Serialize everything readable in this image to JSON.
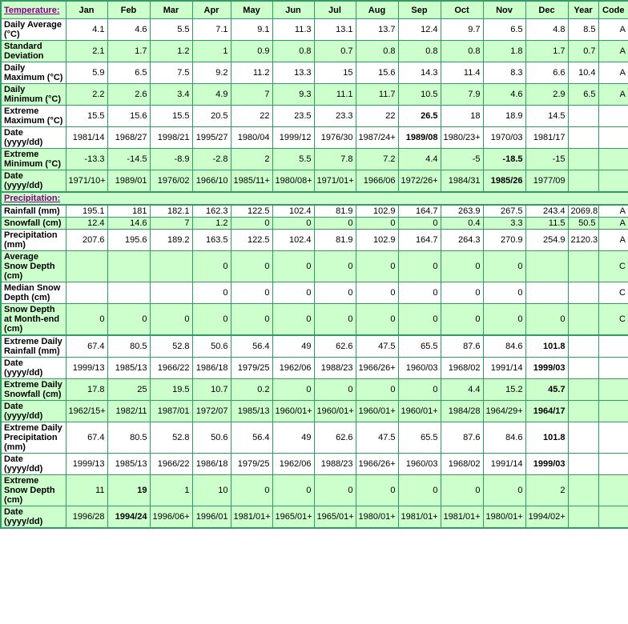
{
  "colors": {
    "border_green": "#339966",
    "row_light_green": "#ccffcc",
    "row_white": "#ffffff",
    "label_blue": "#0000cc",
    "section_link_purple": "#800080",
    "data_text": "#000000"
  },
  "columns": [
    "Jan",
    "Feb",
    "Mar",
    "Apr",
    "May",
    "Jun",
    "Jul",
    "Aug",
    "Sep",
    "Oct",
    "Nov",
    "Dec",
    "Year",
    "Code"
  ],
  "rows": [
    {
      "type": "columns-header",
      "label": "Temperature:",
      "shade": "green"
    },
    {
      "type": "data",
      "label": "Daily Average (°C)",
      "shade": "white",
      "cells": [
        "4.1",
        "4.6",
        "5.5",
        "7.1",
        "9.1",
        "11.3",
        "13.1",
        "13.7",
        "12.4",
        "9.7",
        "6.5",
        "4.8",
        "8.5",
        "A"
      ],
      "bold": []
    },
    {
      "type": "data",
      "label": "Standard Deviation",
      "shade": "green",
      "cells": [
        "2.1",
        "1.7",
        "1.2",
        "1",
        "0.9",
        "0.8",
        "0.7",
        "0.8",
        "0.8",
        "0.8",
        "1.8",
        "1.7",
        "0.7",
        "A"
      ],
      "bold": []
    },
    {
      "type": "data",
      "label": "Daily Maximum (°C)",
      "shade": "white",
      "cells": [
        "5.9",
        "6.5",
        "7.5",
        "9.2",
        "11.2",
        "13.3",
        "15",
        "15.6",
        "14.3",
        "11.4",
        "8.3",
        "6.6",
        "10.4",
        "A"
      ],
      "bold": []
    },
    {
      "type": "data",
      "label": "Daily Minimum (°C)",
      "shade": "green",
      "cells": [
        "2.2",
        "2.6",
        "3.4",
        "4.9",
        "7",
        "9.3",
        "11.1",
        "11.7",
        "10.5",
        "7.9",
        "4.6",
        "2.9",
        "6.5",
        "A"
      ],
      "bold": []
    },
    {
      "type": "data",
      "label": "Extreme Maximum (°C)",
      "shade": "white",
      "cells": [
        "15.5",
        "15.6",
        "15.5",
        "20.5",
        "22",
        "23.5",
        "23.3",
        "22",
        "26.5",
        "18",
        "18.9",
        "14.5",
        "",
        ""
      ],
      "bold": [
        8
      ]
    },
    {
      "type": "data",
      "label": "Date (yyyy/dd)",
      "shade": "white",
      "cells": [
        "1981/14",
        "1968/27",
        "1998/21",
        "1995/27",
        "1980/04",
        "1999/12",
        "1976/30",
        "1987/24+",
        "1989/08",
        "1980/23+",
        "1970/03",
        "1981/17",
        "",
        ""
      ],
      "bold": [
        8
      ]
    },
    {
      "type": "data",
      "label": "Extreme Minimum (°C)",
      "shade": "green",
      "cells": [
        "-13.3",
        "-14.5",
        "-8.9",
        "-2.8",
        "2",
        "5.5",
        "7.8",
        "7.2",
        "4.4",
        "-5",
        "-18.5",
        "-15",
        "",
        ""
      ],
      "bold": [
        10
      ]
    },
    {
      "type": "data",
      "label": "Date (yyyy/dd)",
      "shade": "green",
      "cells": [
        "1971/10+",
        "1989/01",
        "1976/02",
        "1966/10",
        "1985/11+",
        "1980/08+",
        "1971/01+",
        "1966/06",
        "1972/26+",
        "1984/31",
        "1985/26",
        "1977/09",
        "",
        ""
      ],
      "bold": [
        10
      ]
    },
    {
      "type": "section-header",
      "label": "Precipitation:",
      "shade": "green",
      "group_start": true
    },
    {
      "type": "data",
      "label": "Rainfall (mm)",
      "shade": "white",
      "group_start": true,
      "cells": [
        "195.1",
        "181",
        "182.1",
        "162.3",
        "122.5",
        "102.4",
        "81.9",
        "102.9",
        "164.7",
        "263.9",
        "267.5",
        "243.4",
        "2069.8",
        "A"
      ],
      "bold": []
    },
    {
      "type": "data",
      "label": "Snowfall (cm)",
      "shade": "green",
      "cells": [
        "12.4",
        "14.6",
        "7",
        "1.2",
        "0",
        "0",
        "0",
        "0",
        "0",
        "0.4",
        "3.3",
        "11.5",
        "50.5",
        "A"
      ],
      "bold": []
    },
    {
      "type": "data",
      "label": "Precipitation (mm)",
      "shade": "white",
      "cells": [
        "207.6",
        "195.6",
        "189.2",
        "163.5",
        "122.5",
        "102.4",
        "81.9",
        "102.9",
        "164.7",
        "264.3",
        "270.9",
        "254.9",
        "2120.3",
        "A"
      ],
      "bold": []
    },
    {
      "type": "data",
      "label": "Average Snow Depth (cm)",
      "shade": "green",
      "cells": [
        "",
        "",
        "",
        "0",
        "0",
        "0",
        "0",
        "0",
        "0",
        "0",
        "0",
        "",
        "",
        "C"
      ],
      "bold": []
    },
    {
      "type": "data",
      "label": "Median Snow Depth (cm)",
      "shade": "white",
      "cells": [
        "",
        "",
        "",
        "0",
        "0",
        "0",
        "0",
        "0",
        "0",
        "0",
        "0",
        "",
        "",
        "C"
      ],
      "bold": []
    },
    {
      "type": "data",
      "label": "Snow Depth at Month-end (cm)",
      "shade": "green",
      "cells": [
        "0",
        "0",
        "0",
        "0",
        "0",
        "0",
        "0",
        "0",
        "0",
        "0",
        "0",
        "0",
        "",
        "C"
      ],
      "bold": []
    },
    {
      "type": "data",
      "label": "Extreme Daily Rainfall (mm)",
      "shade": "white",
      "group_start": true,
      "cells": [
        "67.4",
        "80.5",
        "52.8",
        "50.6",
        "56.4",
        "49",
        "62.6",
        "47.5",
        "65.5",
        "87.6",
        "84.6",
        "101.8",
        "",
        ""
      ],
      "bold": [
        11
      ]
    },
    {
      "type": "data",
      "label": "Date (yyyy/dd)",
      "shade": "white",
      "cells": [
        "1999/13",
        "1985/13",
        "1966/22",
        "1986/18",
        "1979/25",
        "1962/06",
        "1988/23",
        "1966/26+",
        "1960/03",
        "1968/02",
        "1991/14",
        "1999/03",
        "",
        ""
      ],
      "bold": [
        11
      ]
    },
    {
      "type": "data",
      "label": "Extreme Daily Snowfall (cm)",
      "shade": "green",
      "cells": [
        "17.8",
        "25",
        "19.5",
        "10.7",
        "0.2",
        "0",
        "0",
        "0",
        "0",
        "4.4",
        "15.2",
        "45.7",
        "",
        ""
      ],
      "bold": [
        11
      ]
    },
    {
      "type": "data",
      "label": "Date (yyyy/dd)",
      "shade": "green",
      "cells": [
        "1962/15+",
        "1982/11",
        "1987/01",
        "1972/07",
        "1985/13",
        "1960/01+",
        "1960/01+",
        "1960/01+",
        "1960/01+",
        "1984/28",
        "1964/29+",
        "1964/17",
        "",
        ""
      ],
      "bold": [
        11
      ]
    },
    {
      "type": "data",
      "label": "Extreme Daily Precipitation (mm)",
      "shade": "white",
      "cells": [
        "67.4",
        "80.5",
        "52.8",
        "50.6",
        "56.4",
        "49",
        "62.6",
        "47.5",
        "65.5",
        "87.6",
        "84.6",
        "101.8",
        "",
        ""
      ],
      "bold": [
        11
      ]
    },
    {
      "type": "data",
      "label": "Date (yyyy/dd)",
      "shade": "white",
      "cells": [
        "1999/13",
        "1985/13",
        "1966/22",
        "1986/18",
        "1979/25",
        "1962/06",
        "1988/23",
        "1966/26+",
        "1960/03",
        "1968/02",
        "1991/14",
        "1999/03",
        "",
        ""
      ],
      "bold": [
        11
      ]
    },
    {
      "type": "data",
      "label": "Extreme Snow Depth (cm)",
      "shade": "green",
      "cells": [
        "11",
        "19",
        "1",
        "10",
        "0",
        "0",
        "0",
        "0",
        "0",
        "0",
        "0",
        "2",
        "",
        ""
      ],
      "bold": [
        1
      ]
    },
    {
      "type": "data",
      "label": "Date (yyyy/dd)",
      "shade": "green",
      "cells": [
        "1996/28",
        "1994/24",
        "1996/06+",
        "1996/01",
        "1981/01+",
        "1965/01+",
        "1965/01+",
        "1980/01+",
        "1981/01+",
        "1981/01+",
        "1980/01+",
        "1994/02+",
        "",
        ""
      ],
      "bold": [
        1
      ]
    }
  ]
}
